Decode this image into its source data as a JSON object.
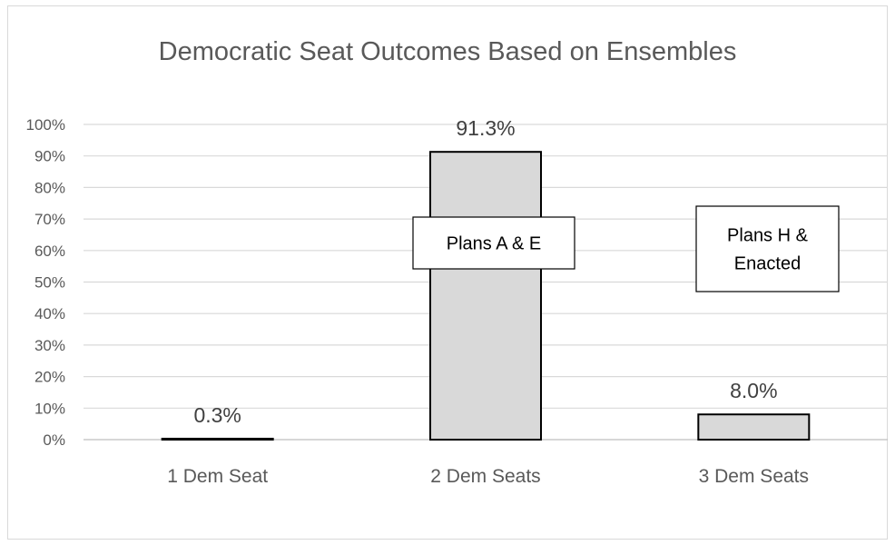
{
  "chart_data": {
    "type": "bar",
    "title": "Democratic Seat Outcomes Based on Ensembles",
    "categories": [
      "1 Dem Seat",
      "2 Dem Seats",
      "3 Dem Seats"
    ],
    "values": [
      0.3,
      91.3,
      8.0
    ],
    "data_labels": [
      "0.3%",
      "91.3%",
      "8.0%"
    ],
    "ylim": [
      0,
      100
    ],
    "yticks": [
      0,
      10,
      20,
      30,
      40,
      50,
      60,
      70,
      80,
      90,
      100
    ],
    "ytick_labels": [
      "0%",
      "10%",
      "20%",
      "30%",
      "40%",
      "50%",
      "60%",
      "70%",
      "80%",
      "90%",
      "100%"
    ],
    "xlabel": "",
    "ylabel": "",
    "grid": true,
    "legend": "none",
    "bar_color": "#d9d9d9",
    "bar_edge_color": "#000000",
    "annotations": [
      {
        "category": "2 Dem Seats",
        "lines": [
          "Plans A & E"
        ]
      },
      {
        "category": "3 Dem Seats",
        "lines": [
          "Plans H &",
          "Enacted"
        ]
      }
    ]
  }
}
